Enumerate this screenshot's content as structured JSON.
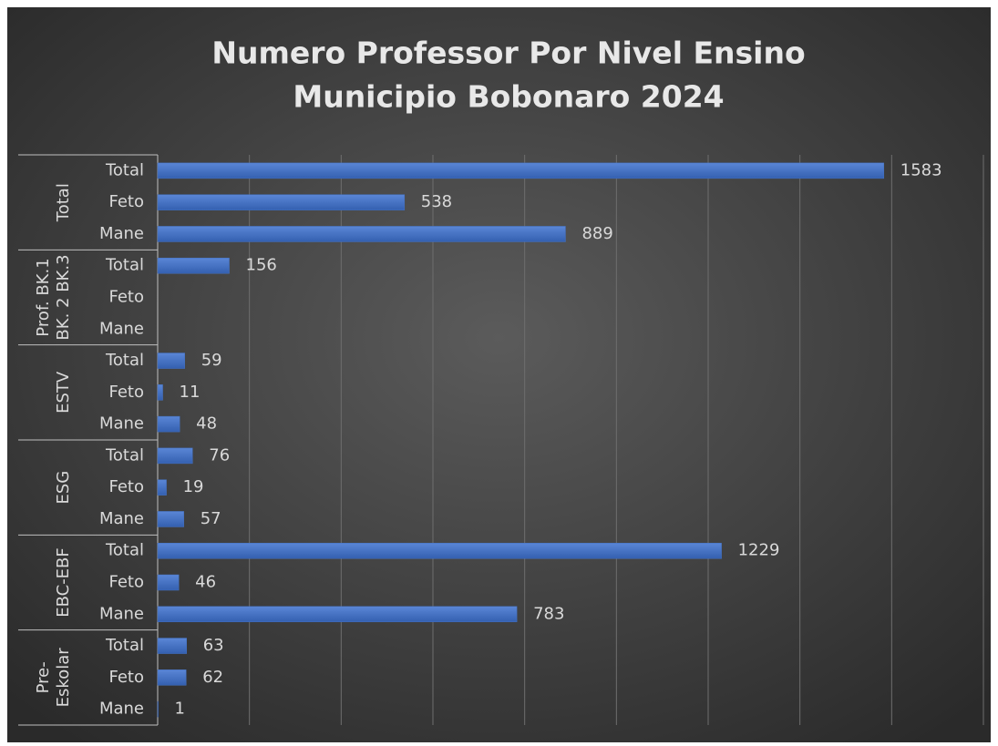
{
  "chart_data": {
    "type": "bar",
    "orientation": "horizontal",
    "title": [
      "Numero Professor Por Nivel Ensino",
      "Municipio Bobonaro  2024"
    ],
    "groups": [
      [
        "Total"
      ],
      [
        "Prof. BK.1",
        "BK. 2 BK.3"
      ],
      [
        "ESTV"
      ],
      [
        "ESG"
      ],
      [
        "EBC-EBF"
      ],
      [
        "Pre-",
        "Eskolar"
      ]
    ],
    "categories": [
      "Total",
      "Feto",
      "Mane",
      "Total",
      "Feto",
      "Mane",
      "Total",
      "Feto",
      "Mane",
      "Total",
      "Feto",
      "Mane",
      "Total",
      "Feto",
      "Mane",
      "Total",
      "Feto",
      "Mane"
    ],
    "values": [
      1583,
      538,
      889,
      156,
      null,
      null,
      59,
      11,
      48,
      76,
      19,
      57,
      1229,
      46,
      783,
      63,
      62,
      1
    ],
    "color": "#4472c4",
    "xlim": [
      0,
      1800
    ],
    "xticks": [
      0,
      200,
      400,
      600,
      800,
      1000,
      1200,
      1400,
      1600,
      1800
    ],
    "grid": true
  }
}
